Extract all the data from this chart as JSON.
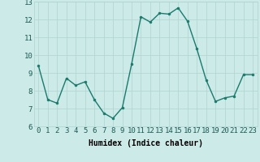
{
  "x": [
    0,
    1,
    2,
    3,
    4,
    5,
    6,
    7,
    8,
    9,
    10,
    11,
    12,
    13,
    14,
    15,
    16,
    17,
    18,
    19,
    20,
    21,
    22,
    23
  ],
  "y": [
    9.4,
    7.5,
    7.3,
    8.7,
    8.3,
    8.5,
    7.5,
    6.75,
    6.45,
    7.05,
    9.5,
    12.15,
    11.85,
    12.35,
    12.3,
    12.65,
    11.9,
    10.35,
    8.6,
    7.4,
    7.6,
    7.7,
    8.9,
    8.9
  ],
  "line_color": "#1a7a6e",
  "marker": "o",
  "marker_size": 2.0,
  "linewidth": 1.0,
  "bg_color": "#cceae7",
  "grid_color": "#b0d4d0",
  "xlabel": "Humidex (Indice chaleur)",
  "xlim": [
    -0.5,
    23.5
  ],
  "ylim": [
    6,
    13
  ],
  "yticks": [
    6,
    7,
    8,
    9,
    10,
    11,
    12,
    13
  ],
  "xticks": [
    0,
    1,
    2,
    3,
    4,
    5,
    6,
    7,
    8,
    9,
    10,
    11,
    12,
    13,
    14,
    15,
    16,
    17,
    18,
    19,
    20,
    21,
    22,
    23
  ],
  "xlabel_fontsize": 7,
  "tick_fontsize": 6.5
}
